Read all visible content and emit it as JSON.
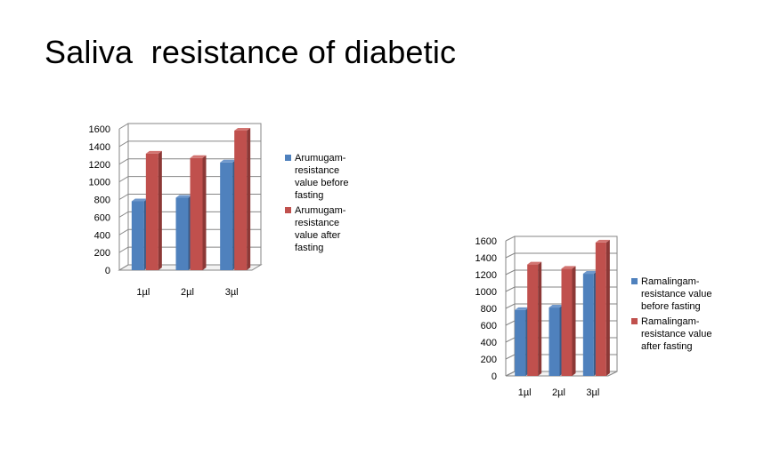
{
  "title": "Saliva  resistance of diabetic",
  "colors": {
    "before": "#4F81BD",
    "before_side": "#385D8A",
    "before_top": "#6F98CC",
    "after": "#C0504D",
    "after_side": "#8C3836",
    "after_top": "#D27471",
    "grid": "#868686",
    "wall": "#ffffff"
  },
  "chart_data": [
    {
      "type": "bar",
      "categories": [
        "1µl",
        "2µl",
        "3µl"
      ],
      "ylim": [
        0,
        1600
      ],
      "yticks": [
        0,
        200,
        400,
        600,
        800,
        1000,
        1200,
        1400,
        1600
      ],
      "ytick_labels": [
        "0",
        "200",
        "400",
        "600",
        "800",
        "1000",
        "1200",
        "1400",
        "1600"
      ],
      "series": [
        {
          "name": "Arumugam-resistance value before fasting",
          "values": [
            780,
            820,
            1220
          ]
        },
        {
          "name": "Arumugam-resistance value after fasting",
          "values": [
            1320,
            1270,
            1580
          ]
        }
      ],
      "legend": {
        "position": "right",
        "lines": [
          [
            "Arumugam-",
            "resistance",
            "value before",
            "fasting"
          ],
          [
            "Arumugam-",
            "resistance",
            "value after",
            "fasting"
          ]
        ]
      }
    },
    {
      "type": "bar",
      "categories": [
        "1µl",
        "2µl",
        "3µl"
      ],
      "ylim": [
        0,
        1600
      ],
      "yticks": [
        0,
        200,
        400,
        600,
        800,
        1000,
        1200,
        1400,
        1600
      ],
      "ytick_labels": [
        "0",
        "200",
        "400",
        "600",
        "800",
        "1000",
        "1200",
        "1400",
        "1600"
      ],
      "series": [
        {
          "name": "Ramalingam-resistance value before fasting",
          "values": [
            780,
            810,
            1210
          ]
        },
        {
          "name": "Ramalingam-resistance value after fasting",
          "values": [
            1320,
            1270,
            1580
          ]
        }
      ],
      "legend": {
        "position": "right",
        "lines": [
          [
            "Ramalingam-",
            "resistance value",
            "before fasting"
          ],
          [
            "Ramalingam-",
            "resistance value",
            "after fasting"
          ]
        ]
      }
    }
  ]
}
